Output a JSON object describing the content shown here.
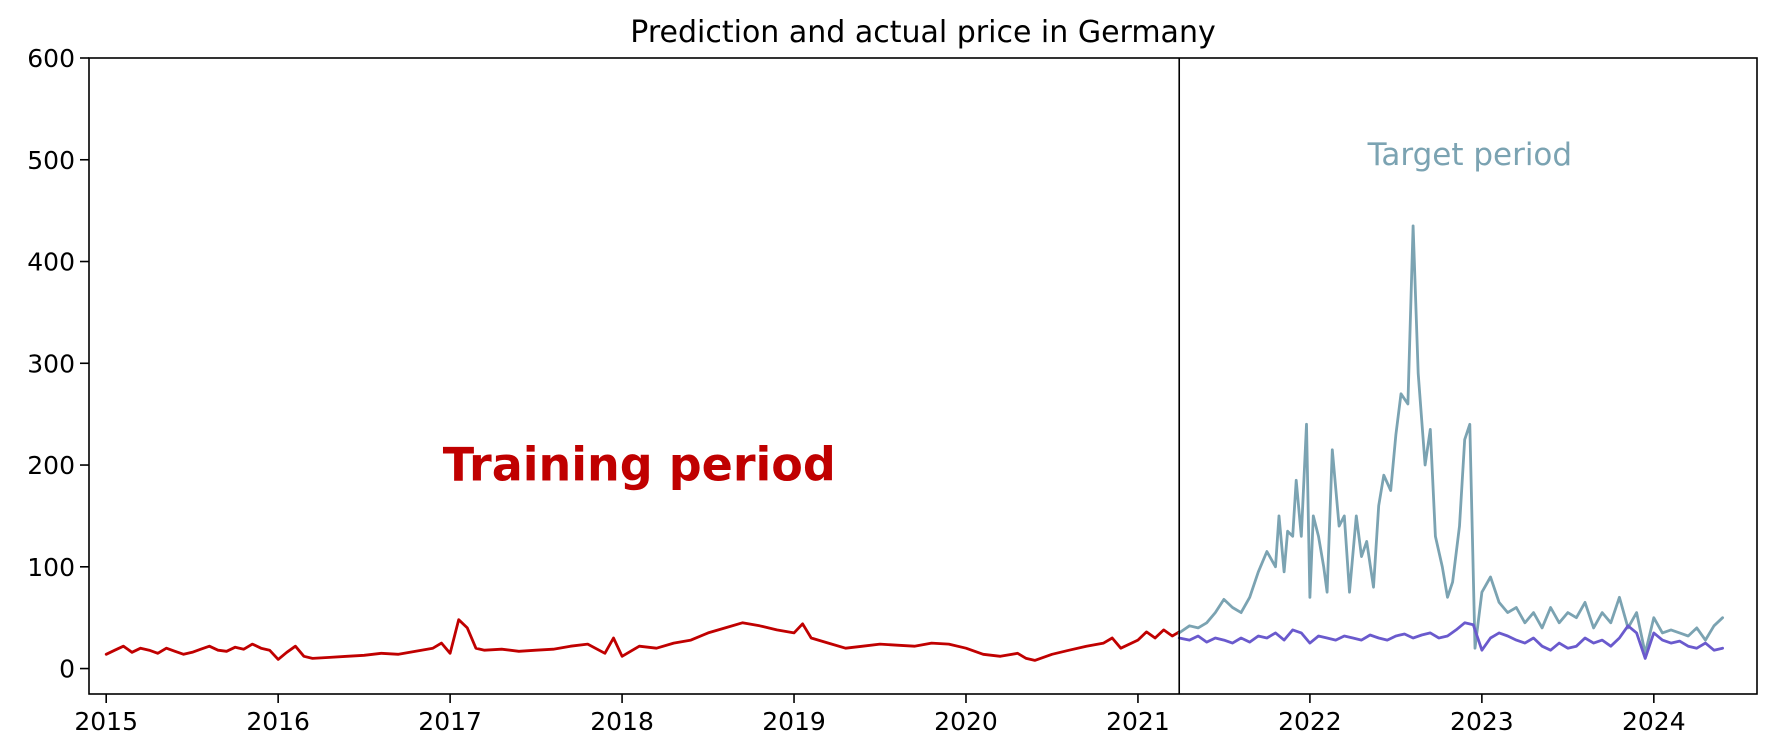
{
  "chart_data": {
    "type": "line",
    "title": "Prediction and actual price in Germany",
    "xlabel": "",
    "ylabel": "",
    "xlim": [
      2014.9,
      2024.6
    ],
    "ylim": [
      -25,
      600
    ],
    "x_ticks": [
      2015,
      2016,
      2017,
      2018,
      2019,
      2020,
      2021,
      2022,
      2023,
      2024
    ],
    "x_tick_labels": [
      "2015",
      "2016",
      "2017",
      "2018",
      "2019",
      "2020",
      "2021",
      "2022",
      "2023",
      "2024"
    ],
    "y_ticks": [
      0,
      100,
      200,
      300,
      400,
      500,
      600
    ],
    "y_tick_labels": [
      "0",
      "100",
      "200",
      "300",
      "400",
      "500",
      "600"
    ],
    "grid": false,
    "legend": "none",
    "split_x": 2021.24,
    "annotations": [
      {
        "text": "Training period",
        "x": 2018.1,
        "y": 185,
        "color": "#c00000"
      },
      {
        "text": "Target period",
        "x": 2022.93,
        "y": 495,
        "color": "#7ba3b2"
      }
    ],
    "series": [
      {
        "role": "training-actual",
        "color": "#c00000",
        "x": [
          2015.0,
          2015.05,
          2015.1,
          2015.15,
          2015.2,
          2015.25,
          2015.3,
          2015.35,
          2015.4,
          2015.45,
          2015.5,
          2015.55,
          2015.6,
          2015.65,
          2015.7,
          2015.75,
          2015.8,
          2015.85,
          2015.9,
          2015.95,
          2016.0,
          2016.05,
          2016.1,
          2016.15,
          2016.2,
          2016.3,
          2016.4,
          2016.5,
          2016.6,
          2016.7,
          2016.8,
          2016.9,
          2016.95,
          2017.0,
          2017.05,
          2017.1,
          2017.15,
          2017.2,
          2017.3,
          2017.4,
          2017.5,
          2017.6,
          2017.7,
          2017.8,
          2017.9,
          2017.95,
          2018.0,
          2018.1,
          2018.2,
          2018.3,
          2018.4,
          2018.5,
          2018.6,
          2018.7,
          2018.8,
          2018.9,
          2019.0,
          2019.05,
          2019.1,
          2019.2,
          2019.3,
          2019.4,
          2019.5,
          2019.6,
          2019.7,
          2019.8,
          2019.9,
          2020.0,
          2020.1,
          2020.2,
          2020.3,
          2020.35,
          2020.4,
          2020.5,
          2020.6,
          2020.7,
          2020.8,
          2020.85,
          2020.9,
          2021.0,
          2021.05,
          2021.1,
          2021.15,
          2021.2,
          2021.24
        ],
        "y": [
          14,
          18,
          22,
          16,
          20,
          18,
          15,
          20,
          17,
          14,
          16,
          19,
          22,
          18,
          17,
          21,
          19,
          24,
          20,
          18,
          9,
          16,
          22,
          12,
          10,
          11,
          12,
          13,
          15,
          14,
          17,
          20,
          25,
          15,
          48,
          40,
          20,
          18,
          19,
          17,
          18,
          19,
          22,
          24,
          15,
          30,
          12,
          22,
          20,
          25,
          28,
          35,
          40,
          45,
          42,
          38,
          35,
          44,
          30,
          25,
          20,
          22,
          24,
          23,
          22,
          25,
          24,
          20,
          14,
          12,
          15,
          10,
          8,
          14,
          18,
          22,
          25,
          30,
          20,
          28,
          36,
          30,
          38,
          32,
          36
        ]
      },
      {
        "role": "target-actual",
        "color": "#7ba3b2",
        "x": [
          2021.24,
          2021.3,
          2021.35,
          2021.4,
          2021.45,
          2021.5,
          2021.55,
          2021.6,
          2021.65,
          2021.7,
          2021.75,
          2021.8,
          2021.82,
          2021.85,
          2021.87,
          2021.9,
          2021.92,
          2021.95,
          2021.98,
          2022.0,
          2022.02,
          2022.05,
          2022.08,
          2022.1,
          2022.13,
          2022.17,
          2022.2,
          2022.23,
          2022.27,
          2022.3,
          2022.33,
          2022.37,
          2022.4,
          2022.43,
          2022.47,
          2022.5,
          2022.53,
          2022.57,
          2022.6,
          2022.63,
          2022.67,
          2022.7,
          2022.73,
          2022.77,
          2022.8,
          2022.83,
          2022.87,
          2022.9,
          2022.93,
          2022.96,
          2023.0,
          2023.05,
          2023.1,
          2023.15,
          2023.2,
          2023.25,
          2023.3,
          2023.35,
          2023.4,
          2023.45,
          2023.5,
          2023.55,
          2023.6,
          2023.65,
          2023.7,
          2023.75,
          2023.8,
          2023.85,
          2023.9,
          2023.95,
          2024.0,
          2024.05,
          2024.1,
          2024.15,
          2024.2,
          2024.25,
          2024.3,
          2024.35,
          2024.4
        ],
        "y": [
          35,
          42,
          40,
          45,
          55,
          68,
          60,
          55,
          70,
          95,
          115,
          100,
          150,
          95,
          135,
          130,
          185,
          130,
          240,
          70,
          150,
          130,
          100,
          75,
          215,
          140,
          150,
          75,
          150,
          110,
          125,
          80,
          160,
          190,
          175,
          230,
          270,
          260,
          435,
          290,
          200,
          235,
          130,
          100,
          70,
          85,
          140,
          225,
          240,
          20,
          75,
          90,
          65,
          55,
          60,
          45,
          55,
          40,
          60,
          45,
          55,
          50,
          65,
          40,
          55,
          45,
          70,
          40,
          55,
          15,
          50,
          35,
          38,
          35,
          32,
          40,
          28,
          42,
          50
        ]
      },
      {
        "role": "target-prediction",
        "color": "#6a5acd",
        "x": [
          2021.24,
          2021.3,
          2021.35,
          2021.4,
          2021.45,
          2021.5,
          2021.55,
          2021.6,
          2021.65,
          2021.7,
          2021.75,
          2021.8,
          2021.85,
          2021.9,
          2021.95,
          2022.0,
          2022.05,
          2022.1,
          2022.15,
          2022.2,
          2022.25,
          2022.3,
          2022.35,
          2022.4,
          2022.45,
          2022.5,
          2022.55,
          2022.6,
          2022.65,
          2022.7,
          2022.75,
          2022.8,
          2022.85,
          2022.9,
          2022.95,
          2023.0,
          2023.05,
          2023.1,
          2023.15,
          2023.2,
          2023.25,
          2023.3,
          2023.35,
          2023.4,
          2023.45,
          2023.5,
          2023.55,
          2023.6,
          2023.65,
          2023.7,
          2023.75,
          2023.8,
          2023.85,
          2023.9,
          2023.95,
          2024.0,
          2024.05,
          2024.1,
          2024.15,
          2024.2,
          2024.25,
          2024.3,
          2024.35,
          2024.4
        ],
        "y": [
          30,
          28,
          32,
          26,
          30,
          28,
          25,
          30,
          26,
          32,
          30,
          35,
          28,
          38,
          35,
          25,
          32,
          30,
          28,
          32,
          30,
          28,
          33,
          30,
          28,
          32,
          34,
          30,
          33,
          35,
          30,
          32,
          38,
          45,
          43,
          18,
          30,
          35,
          32,
          28,
          25,
          30,
          22,
          18,
          25,
          20,
          22,
          30,
          25,
          28,
          22,
          30,
          42,
          35,
          10,
          35,
          28,
          25,
          27,
          22,
          20,
          25,
          18,
          20
        ]
      }
    ]
  }
}
